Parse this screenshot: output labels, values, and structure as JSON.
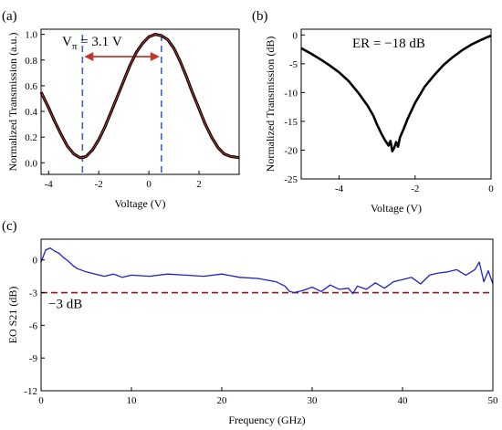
{
  "chart_data": [
    {
      "panel": "(a)",
      "type": "line",
      "xlabel": "Voltage (V)",
      "ylabel": "Normalized Transmission (a.u.)",
      "xlim": [
        -4.3,
        3.6
      ],
      "ylim": [
        -0.09,
        1.04
      ],
      "xticks": [
        -4,
        -2,
        0,
        2
      ],
      "xtick_labels": [
        "-4",
        "-2",
        "0",
        "2"
      ],
      "yticks": [
        0.0,
        0.2,
        0.4,
        0.6,
        0.8,
        1.0
      ],
      "ytick_labels": [
        "0.0",
        "0.2",
        "0.4",
        "0.6",
        "0.8",
        "1.0"
      ],
      "vpi_annotation": {
        "prefix": "V",
        "subscript": "π",
        "suffix": " = 3.1 V"
      },
      "vpi_markers": [
        -2.65,
        0.5
      ],
      "series": [
        {
          "color": "#000000",
          "lineWidth": 3.2,
          "x": [
            -4.3,
            -4.0,
            -3.75,
            -3.5,
            -3.25,
            -3.0,
            -2.75,
            -2.65,
            -2.5,
            -2.25,
            -2.0,
            -1.75,
            -1.5,
            -1.25,
            -1.0,
            -0.75,
            -0.5,
            -0.25,
            0.0,
            0.25,
            0.5,
            0.75,
            1.0,
            1.25,
            1.5,
            1.75,
            2.0,
            2.25,
            2.5,
            2.75,
            3.0,
            3.25,
            3.6
          ],
          "y": [
            0.55,
            0.43,
            0.32,
            0.22,
            0.13,
            0.07,
            0.04,
            0.04,
            0.05,
            0.1,
            0.18,
            0.28,
            0.4,
            0.52,
            0.64,
            0.76,
            0.86,
            0.93,
            0.98,
            1.0,
            0.99,
            0.96,
            0.89,
            0.79,
            0.67,
            0.54,
            0.42,
            0.3,
            0.2,
            0.12,
            0.07,
            0.05,
            0.04
          ]
        },
        {
          "color": "#c0392b",
          "lineWidth": 1,
          "x": [
            -4.3,
            -4.0,
            -3.75,
            -3.5,
            -3.25,
            -3.0,
            -2.75,
            -2.65,
            -2.5,
            -2.25,
            -2.0,
            -1.75,
            -1.5,
            -1.25,
            -1.0,
            -0.75,
            -0.5,
            -0.25,
            0.0,
            0.25,
            0.5,
            0.75,
            1.0,
            1.25,
            1.5,
            1.75,
            2.0,
            2.25,
            2.5,
            2.75,
            3.0,
            3.25,
            3.6
          ],
          "y": [
            0.55,
            0.43,
            0.32,
            0.22,
            0.13,
            0.07,
            0.04,
            0.04,
            0.05,
            0.1,
            0.18,
            0.28,
            0.4,
            0.52,
            0.64,
            0.76,
            0.86,
            0.93,
            0.98,
            1.0,
            0.99,
            0.96,
            0.89,
            0.79,
            0.67,
            0.54,
            0.42,
            0.3,
            0.2,
            0.12,
            0.07,
            0.05,
            0.04
          ]
        }
      ]
    },
    {
      "panel": "(b)",
      "type": "line",
      "xlabel": "Voltage (V)",
      "ylabel": "Normalized Transmission (dB)",
      "annotation": "ER = −18 dB",
      "xlim": [
        -5,
        0
      ],
      "ylim": [
        -25,
        1
      ],
      "xticks": [
        -4,
        -2,
        0
      ],
      "xtick_labels": [
        "-4",
        "-2",
        "0"
      ],
      "yticks": [
        0,
        -5,
        -10,
        -15,
        -20,
        -25
      ],
      "ytick_labels": [
        "0",
        "-5",
        "-10",
        "-15",
        "-20",
        "-25"
      ],
      "series": [
        {
          "color": "#000000",
          "x": [
            -5.0,
            -4.75,
            -4.5,
            -4.25,
            -4.0,
            -3.75,
            -3.5,
            -3.25,
            -3.1,
            -3.0,
            -2.9,
            -2.8,
            -2.7,
            -2.65,
            -2.6,
            -2.55,
            -2.5,
            -2.45,
            -2.4,
            -2.3,
            -2.2,
            -2.0,
            -1.75,
            -1.5,
            -1.25,
            -1.0,
            -0.75,
            -0.5,
            -0.25,
            0.0
          ],
          "y": [
            -2.3,
            -3.2,
            -4.2,
            -5.3,
            -6.5,
            -8.0,
            -10.0,
            -12.3,
            -14.0,
            -15.6,
            -17.0,
            -18.2,
            -19.2,
            -18.4,
            -20.2,
            -19.6,
            -18.6,
            -19.4,
            -17.8,
            -16.3,
            -14.6,
            -11.8,
            -9.0,
            -7.0,
            -5.2,
            -3.8,
            -2.6,
            -1.6,
            -0.8,
            -0.1
          ]
        }
      ]
    },
    {
      "panel": "(c)",
      "type": "line",
      "xlabel": "Frequency (GHz)",
      "ylabel": "EO S21 (dB)",
      "xlim": [
        0,
        50
      ],
      "ylim": [
        -12,
        1.9
      ],
      "xticks": [
        0,
        10,
        20,
        30,
        40,
        50
      ],
      "xtick_labels": [
        "0",
        "10",
        "20",
        "30",
        "40",
        "50"
      ],
      "yticks": [
        0,
        -3,
        -6,
        -9,
        -12
      ],
      "ytick_labels": [
        "0",
        "-3",
        "-6",
        "-9",
        "-12"
      ],
      "reference_line": {
        "y": -3,
        "label": "−3 dB",
        "color": "#8b1a1a"
      },
      "series": [
        {
          "color": "#1f22c8",
          "x": [
            0,
            0.5,
            1,
            1.5,
            2,
            2.5,
            3,
            3.5,
            4,
            5,
            6,
            7,
            8,
            9,
            10,
            12,
            14,
            16,
            18,
            20,
            22,
            24,
            26,
            27,
            27.5,
            28,
            29,
            30,
            31,
            32,
            33,
            34,
            34.5,
            35,
            36,
            37,
            38,
            39,
            40,
            41,
            42,
            43,
            44,
            45,
            46,
            47,
            48,
            48.5,
            49,
            49.5,
            50
          ],
          "y": [
            -0.2,
            0.9,
            1.1,
            0.8,
            0.6,
            0.2,
            -0.1,
            -0.5,
            -0.8,
            -1.1,
            -1.3,
            -1.5,
            -1.3,
            -1.6,
            -1.4,
            -1.5,
            -1.3,
            -1.4,
            -1.5,
            -1.3,
            -1.6,
            -1.7,
            -2.0,
            -2.4,
            -2.9,
            -3.0,
            -2.8,
            -2.5,
            -2.9,
            -2.3,
            -2.7,
            -2.6,
            -3.1,
            -2.4,
            -2.7,
            -2.1,
            -2.6,
            -2.0,
            -1.8,
            -1.6,
            -2.2,
            -1.4,
            -1.2,
            -1.1,
            -0.9,
            -1.4,
            -0.9,
            -0.2,
            -2.0,
            -1.0,
            -2.2
          ]
        }
      ]
    }
  ]
}
